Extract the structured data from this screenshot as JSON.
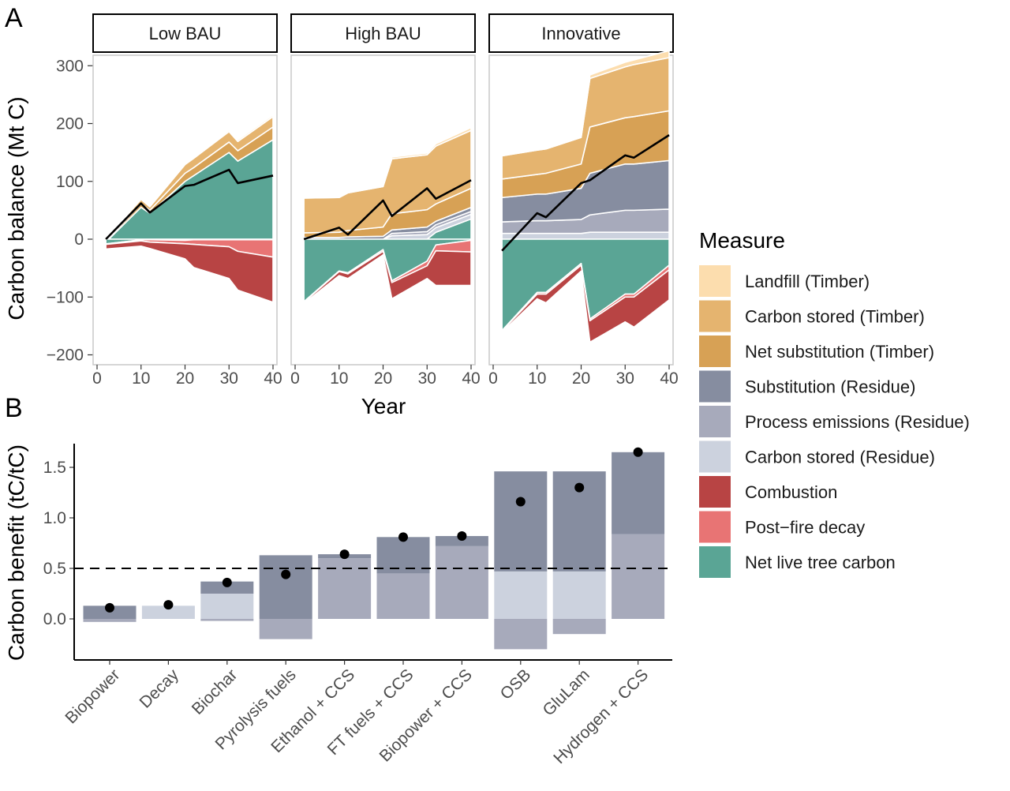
{
  "chart_data": [
    {
      "type": "area",
      "panel_label": "A",
      "ylabel": "Carbon balance (Mt C)",
      "xlabel": "Year",
      "xlim": [
        0,
        40
      ],
      "ylim": [
        -200,
        300
      ],
      "xticks": [
        "0",
        "10",
        "20",
        "30",
        "40"
      ],
      "yticks": [
        "300",
        "200",
        "100",
        "0",
        "−100",
        "−200"
      ],
      "ytick_values": [
        300,
        200,
        100,
        0,
        -100,
        -200
      ],
      "xtick_values": [
        0,
        10,
        20,
        30,
        40
      ],
      "legend_title": "Measure",
      "legend": [
        {
          "name": "Landfill (Timber)",
          "color": "#fcddae"
        },
        {
          "name": "Carbon stored (Timber)",
          "color": "#e5b46f"
        },
        {
          "name": "Net substitution (Timber)",
          "color": "#d7a155"
        },
        {
          "name": "Substitution (Residue)",
          "color": "#868da0"
        },
        {
          "name": "Process emissions (Residue)",
          "color": "#a7aabb"
        },
        {
          "name": "Carbon stored (Residue)",
          "color": "#ccd2de"
        },
        {
          "name": "Combustion",
          "color": "#b84444"
        },
        {
          "name": "Post−fire decay",
          "color": "#e87474"
        },
        {
          "name": "Net live tree carbon",
          "color": "#5aa595"
        }
      ],
      "line_color": "#000000",
      "panels": [
        {
          "title": "Low BAU",
          "x": [
            2,
            10,
            12,
            20,
            22,
            30,
            32,
            40
          ],
          "pos": [
            {
              "name": "Net live tree carbon",
              "values": [
                -5,
                55,
                45,
                100,
                110,
                150,
                135,
                172
              ]
            },
            {
              "name": "Net substitution (Timber)",
              "values": [
                2,
                6,
                5,
                14,
                14,
                18,
                18,
                22
              ]
            },
            {
              "name": "Carbon stored (Timber)",
              "values": [
                3,
                8,
                6,
                15,
                16,
                18,
                16,
                18
              ]
            },
            {
              "name": "Landfill (Timber)",
              "values": [
                0.5,
                1,
                1,
                2,
                2,
                3,
                3,
                3
              ]
            }
          ],
          "neg": [
            {
              "name": "Net live tree carbon",
              "values": [
                -8,
                -1,
                -1,
                -2,
                -1,
                -1,
                -1,
                -1
              ]
            },
            {
              "name": "Post−fire decay",
              "values": [
                -1,
                -2,
                -4,
                -6,
                -8,
                -12,
                -20,
                -30
              ]
            },
            {
              "name": "Combustion",
              "values": [
                -8,
                -9,
                -11,
                -26,
                -40,
                -55,
                -67,
                -78
              ]
            }
          ],
          "line": [
            0,
            62,
            46,
            92,
            94,
            120,
            97,
            110
          ]
        },
        {
          "title": "High BAU",
          "x": [
            2,
            10,
            12,
            20,
            22,
            30,
            32,
            40
          ],
          "pos": [
            {
              "name": "Net live tree carbon",
              "values": [
                0,
                0,
                0,
                0,
                0,
                0,
                12,
                35
              ]
            },
            {
              "name": "Carbon stored (Residue)",
              "values": [
                0,
                0,
                0,
                0,
                6,
                8,
                8,
                8
              ]
            },
            {
              "name": "Process emissions (Residue)",
              "values": [
                0,
                0,
                0,
                0,
                4,
                5,
                5,
                5
              ]
            },
            {
              "name": "Substitution (Residue)",
              "values": [
                3,
                3,
                4,
                5,
                6,
                8,
                6,
                7
              ]
            },
            {
              "name": "Net substitution (Timber)",
              "values": [
                8,
                9,
                11,
                16,
                28,
                30,
                30,
                33
              ]
            },
            {
              "name": "Carbon stored (Timber)",
              "values": [
                60,
                60,
                65,
                70,
                95,
                95,
                100,
                100
              ]
            },
            {
              "name": "Landfill (Timber)",
              "values": [
                1,
                1,
                1,
                2,
                3,
                3,
                4,
                5
              ]
            }
          ],
          "neg": [
            {
              "name": "Net live tree carbon",
              "values": [
                -108,
                -55,
                -58,
                -18,
                -72,
                -38,
                -10,
                -2
              ]
            },
            {
              "name": "Post−fire decay",
              "values": [
                -1,
                -1,
                -2,
                -3,
                -3,
                -8,
                -10,
                -20
              ]
            },
            {
              "name": "Combustion",
              "values": [
                -2,
                -7,
                -8,
                -6,
                -28,
                -22,
                -60,
                -58
              ]
            }
          ],
          "line": [
            0,
            20,
            8,
            67,
            40,
            88,
            70,
            102
          ]
        },
        {
          "title": "Innovative",
          "x": [
            2,
            10,
            12,
            20,
            22,
            30,
            32,
            40
          ],
          "pos": [
            {
              "name": "Carbon stored (Residue)",
              "values": [
                10,
                10,
                10,
                10,
                12,
                12,
                12,
                12
              ]
            },
            {
              "name": "Process emissions (Residue)",
              "values": [
                20,
                22,
                22,
                24,
                30,
                38,
                38,
                40
              ]
            },
            {
              "name": "Substitution (Residue)",
              "values": [
                42,
                46,
                46,
                54,
                72,
                80,
                80,
                84
              ]
            },
            {
              "name": "Net substitution (Timber)",
              "values": [
                32,
                34,
                36,
                42,
                80,
                80,
                82,
                86
              ]
            },
            {
              "name": "Carbon stored (Timber)",
              "values": [
                40,
                42,
                42,
                46,
                84,
                88,
                90,
                92
              ]
            },
            {
              "name": "Landfill (Timber)",
              "values": [
                2,
                2,
                2,
                2,
                6,
                8,
                8,
                12
              ]
            }
          ],
          "neg": [
            {
              "name": "Net live tree carbon",
              "values": [
                -158,
                -92,
                -92,
                -42,
                -138,
                -95,
                -95,
                -45
              ]
            },
            {
              "name": "Post−fire decay",
              "values": [
                -1,
                -3,
                -3,
                -3,
                -3,
                -5,
                -5,
                -8
              ]
            },
            {
              "name": "Combustion",
              "values": [
                -2,
                -8,
                -15,
                -10,
                -37,
                -43,
                -52,
                -52
              ]
            }
          ],
          "line": [
            -20,
            45,
            38,
            97,
            102,
            145,
            141,
            180
          ]
        }
      ]
    },
    {
      "type": "bar",
      "panel_label": "B",
      "ylabel": "Carbon benefit (tC/tC)",
      "ylim": [
        -0.38,
        1.75
      ],
      "yticks": [
        "1.5",
        "1.0",
        "0.5",
        "0.0"
      ],
      "ytick_values": [
        1.5,
        1.0,
        0.5,
        0.0
      ],
      "reference_line": 0.5,
      "categories": [
        "Biopower",
        "Decay",
        "Biochar",
        "Pyrolysis fuels",
        "Ethanol + CCS",
        "FT fuels + CCS",
        "Biopower + CCS",
        "OSB",
        "GluLam",
        "Hydrogen + CCS"
      ],
      "series": [
        {
          "name": "Carbon stored (Residue)",
          "color": "#ccd2de",
          "values": [
            0,
            0.13,
            0.25,
            0,
            0,
            0,
            0,
            0.47,
            0.47,
            0
          ]
        },
        {
          "name": "Process emissions (Residue)",
          "color": "#a7aabb",
          "values": [
            -0.03,
            0,
            -0.02,
            -0.2,
            0.6,
            0.45,
            0.72,
            -0.3,
            -0.15,
            0.84
          ]
        },
        {
          "name": "Substitution (Residue)",
          "color": "#868da0",
          "values": [
            0.13,
            0,
            0.12,
            0.63,
            0.04,
            0.36,
            0.1,
            0.99,
            0.99,
            0.81
          ]
        }
      ],
      "net": [
        0.11,
        0.14,
        0.36,
        0.44,
        0.64,
        0.81,
        0.82,
        1.16,
        1.3,
        1.65
      ]
    }
  ]
}
